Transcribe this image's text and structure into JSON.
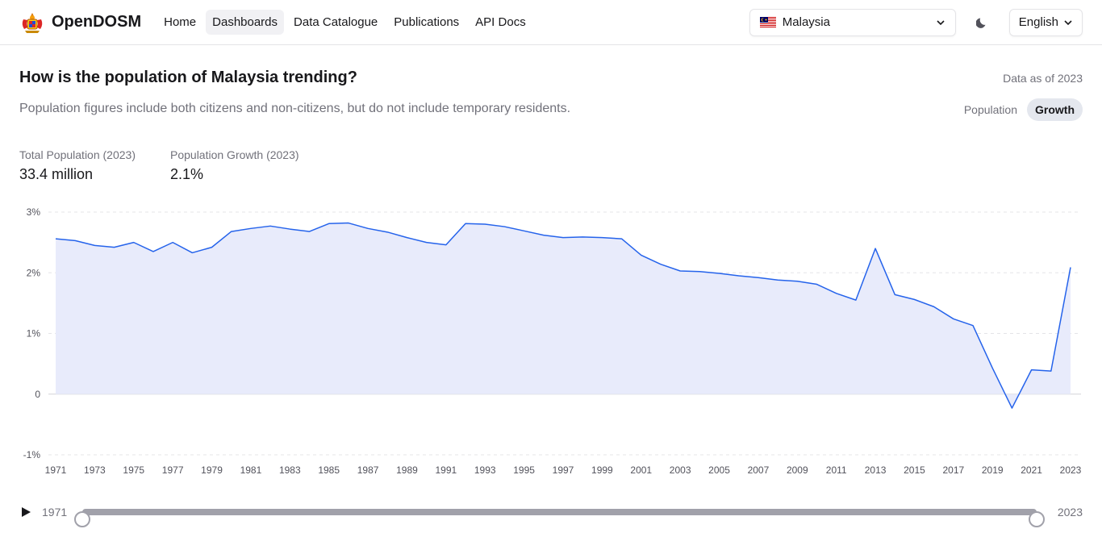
{
  "nav": {
    "brand": "OpenDOSM",
    "items": [
      {
        "label": "Home",
        "active": false
      },
      {
        "label": "Dashboards",
        "active": true
      },
      {
        "label": "Data Catalogue",
        "active": false
      },
      {
        "label": "Publications",
        "active": false
      },
      {
        "label": "API Docs",
        "active": false
      }
    ],
    "country": "Malaysia",
    "language": "English"
  },
  "section": {
    "title": "How is the population of Malaysia trending?",
    "data_as_of": "Data as of 2023",
    "subtitle": "Population figures include both citizens and non-citizens, but do not include temporary residents.",
    "toggle": [
      "Population",
      "Growth"
    ],
    "toggle_active": "Growth"
  },
  "stats": [
    {
      "label": "Total Population (2023)",
      "value": "33.4 million"
    },
    {
      "label": "Population Growth (2023)",
      "value": "2.1%"
    }
  ],
  "chart_data": {
    "type": "area",
    "title": "",
    "xlabel": "",
    "ylabel": "",
    "ylim": [
      -1,
      3
    ],
    "xlim": [
      1971,
      2023
    ],
    "yticks": [
      -1,
      0,
      1,
      2,
      3
    ],
    "ytick_labels": [
      "-1%",
      "0",
      "1%",
      "2%",
      "3%"
    ],
    "xtick_labels": [
      "1971",
      "1973",
      "1975",
      "1977",
      "1979",
      "1981",
      "1983",
      "1985",
      "1987",
      "1989",
      "1991",
      "1993",
      "1995",
      "1997",
      "1999",
      "2001",
      "2003",
      "2005",
      "2007",
      "2009",
      "2011",
      "2013",
      "2015",
      "2017",
      "2019",
      "2021",
      "2023"
    ],
    "grid": true,
    "color": "#2563eb",
    "fill": "#e8ebfb",
    "series": [
      {
        "x": [
          1971,
          1972,
          1973,
          1974,
          1975,
          1976,
          1977,
          1978,
          1979,
          1980,
          1981,
          1982,
          1983,
          1984,
          1985,
          1986,
          1987,
          1988,
          1989,
          1990,
          1991,
          1992,
          1993,
          1994,
          1995,
          1996,
          1997,
          1998,
          1999,
          2000,
          2001,
          2002,
          2003,
          2004,
          2005,
          2006,
          2007,
          2008,
          2009,
          2010,
          2011,
          2012,
          2013,
          2014,
          2015,
          2016,
          2017,
          2018,
          2019,
          2020,
          2021,
          2022,
          2023
        ],
        "values": [
          2.56,
          2.53,
          2.45,
          2.42,
          2.5,
          2.35,
          2.5,
          2.33,
          2.42,
          2.68,
          2.73,
          2.77,
          2.72,
          2.68,
          2.81,
          2.82,
          2.73,
          2.67,
          2.58,
          2.5,
          2.46,
          2.81,
          2.8,
          2.76,
          2.69,
          2.62,
          2.58,
          2.59,
          2.58,
          2.56,
          2.29,
          2.14,
          2.03,
          2.02,
          1.99,
          1.95,
          1.92,
          1.88,
          1.86,
          1.81,
          1.66,
          1.55,
          2.4,
          1.64,
          1.56,
          1.44,
          1.24,
          1.13,
          0.43,
          -0.23,
          0.4,
          0.38,
          2.09
        ]
      }
    ]
  },
  "slider": {
    "min_label": "1971",
    "max_label": "2023",
    "start": 1971,
    "end": 2023,
    "range": [
      1971,
      2023
    ]
  }
}
